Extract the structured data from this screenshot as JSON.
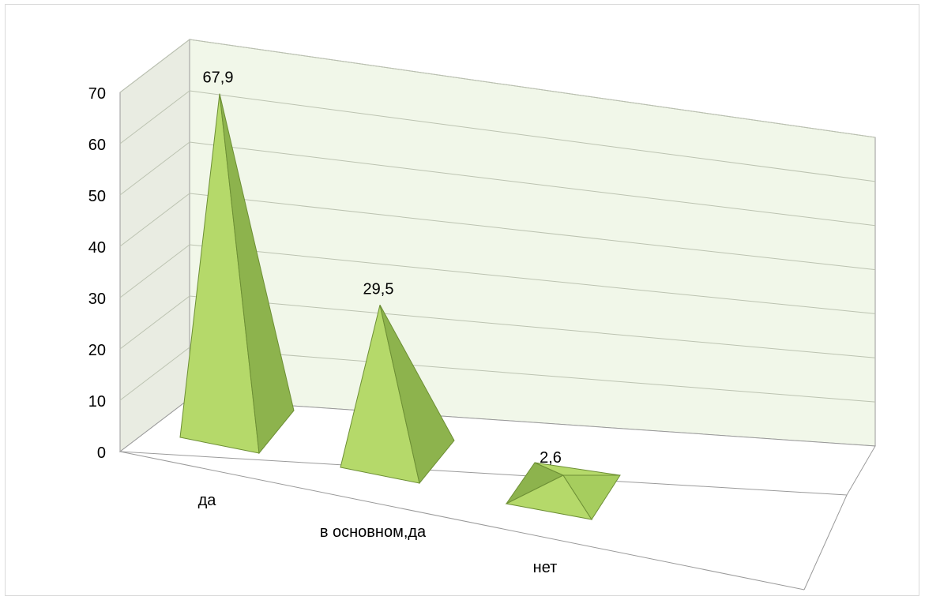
{
  "chart_data": {
    "type": "bar",
    "bar_shape": "3d-pyramid",
    "categories": [
      "да",
      "в основном,да",
      "нет"
    ],
    "values": [
      67.9,
      29.5,
      2.6
    ],
    "data_labels": [
      "67,9",
      "29,5",
      "2,6"
    ],
    "ylim": [
      0,
      70
    ],
    "yticks": [
      "0",
      "10",
      "20",
      "30",
      "40",
      "50",
      "60",
      "70"
    ],
    "grid": true,
    "legend": "none",
    "colors": {
      "face_light": "#b5d96a",
      "face_dark": "#8db34d",
      "edge": "#6d8f35",
      "back_wall": "#f1f7e9",
      "side_wall": "#e9ece2",
      "gridline": "#bcc3b1",
      "frame": "#9a9a9a"
    }
  }
}
